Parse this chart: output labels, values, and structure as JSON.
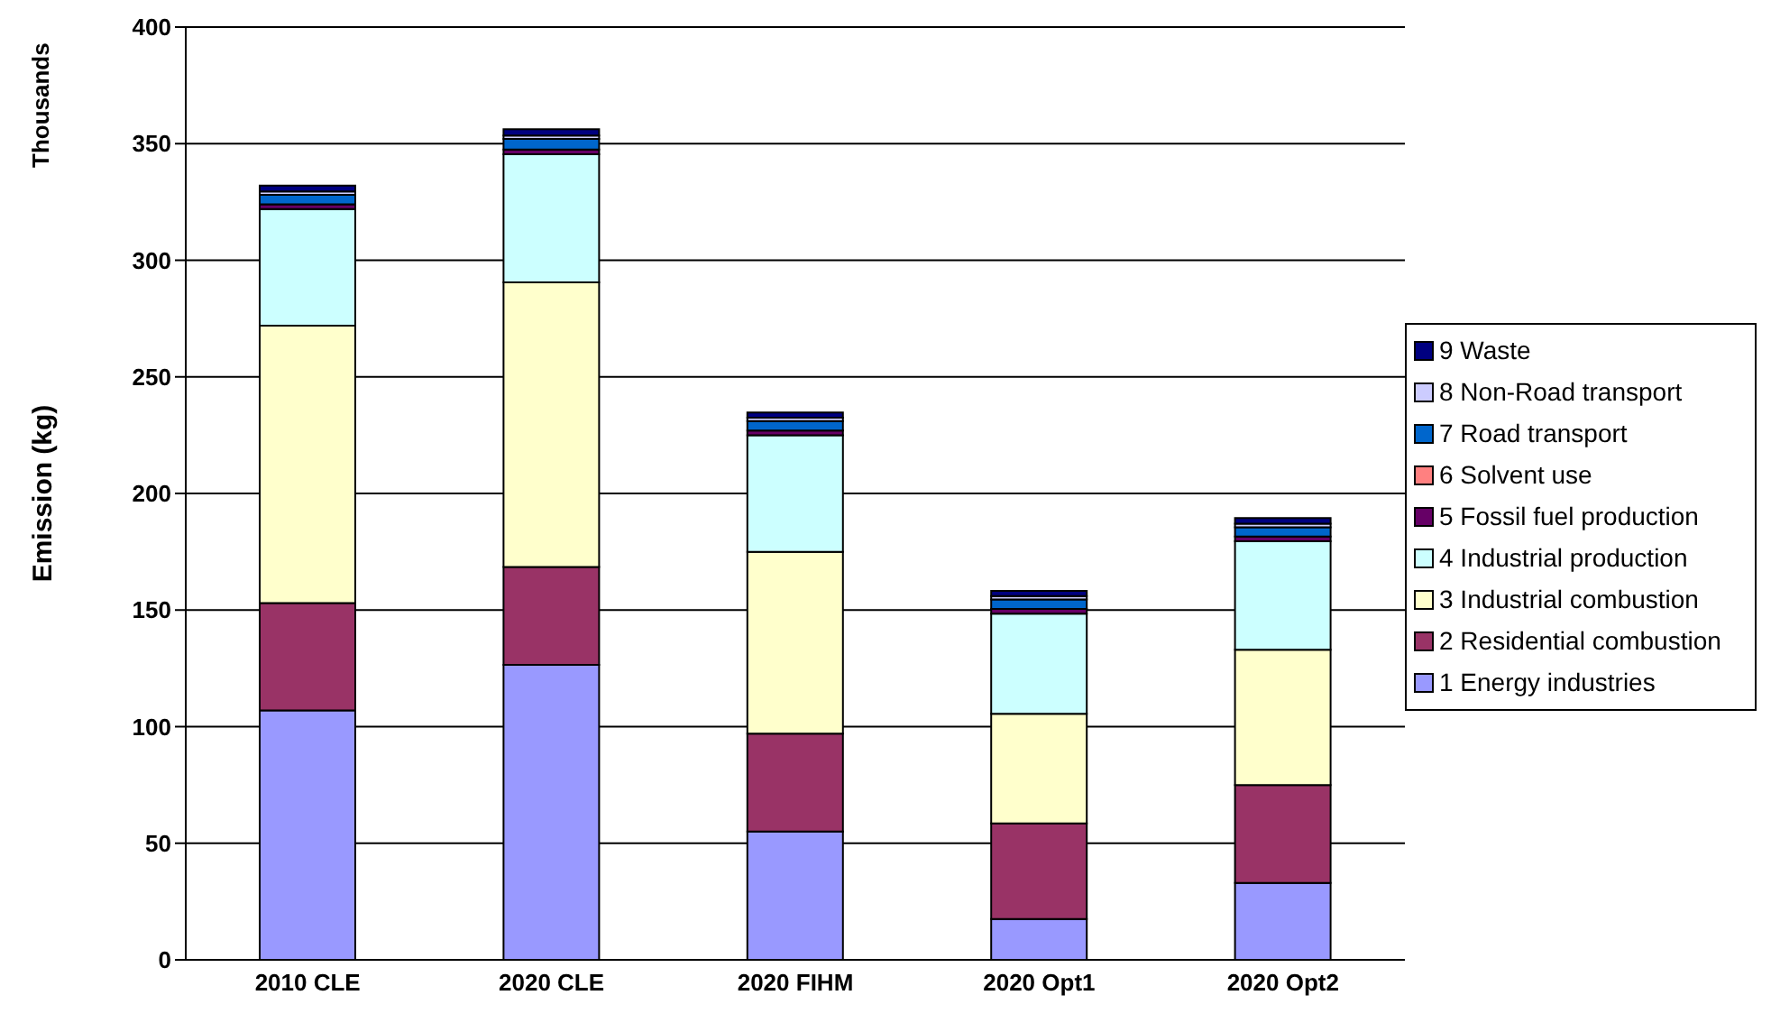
{
  "chart_data": {
    "type": "bar",
    "stacked": true,
    "ylabel": "Emission (kg)",
    "annotations": [
      "Thousands"
    ],
    "categories": [
      "2010 CLE",
      "2020 CLE",
      "2020 FIHM",
      "2020 Opt1",
      "2020 Opt2"
    ],
    "series": [
      {
        "name": "1 Energy industries",
        "color": "#9999ff",
        "values": [
          107,
          126.5,
          55,
          17.5,
          33
        ]
      },
      {
        "name": "2 Residential combustion",
        "color": "#993366",
        "values": [
          46,
          42,
          42,
          41,
          42
        ]
      },
      {
        "name": "3 Industrial combustion",
        "color": "#ffffcc",
        "values": [
          119,
          122,
          78,
          47,
          58
        ]
      },
      {
        "name": "4 Industrial production",
        "color": "#ccffff",
        "values": [
          50,
          55,
          50,
          43,
          46.5
        ]
      },
      {
        "name": "5 Fossil fuel production",
        "color": "#660066",
        "values": [
          2,
          2,
          2,
          2,
          2
        ]
      },
      {
        "name": "6 Solvent use",
        "color": "#ff8080",
        "values": [
          null,
          null,
          null,
          null,
          null
        ]
      },
      {
        "name": "7 Road transport",
        "color": "#0066cc",
        "values": [
          4,
          4.5,
          4,
          4,
          4
        ]
      },
      {
        "name": "8 Non-Road transport",
        "color": "#ccccff",
        "values": [
          1.5,
          1.5,
          1.5,
          1.5,
          1.5
        ]
      },
      {
        "name": "9 Waste",
        "color": "#000080",
        "values": [
          2.5,
          2.7,
          2.2,
          2.2,
          2.5
        ]
      }
    ],
    "ylim": [
      0,
      400
    ],
    "yticks": [
      0,
      50,
      100,
      150,
      200,
      250,
      300,
      350,
      400
    ],
    "grid": "y",
    "legend": "right"
  }
}
